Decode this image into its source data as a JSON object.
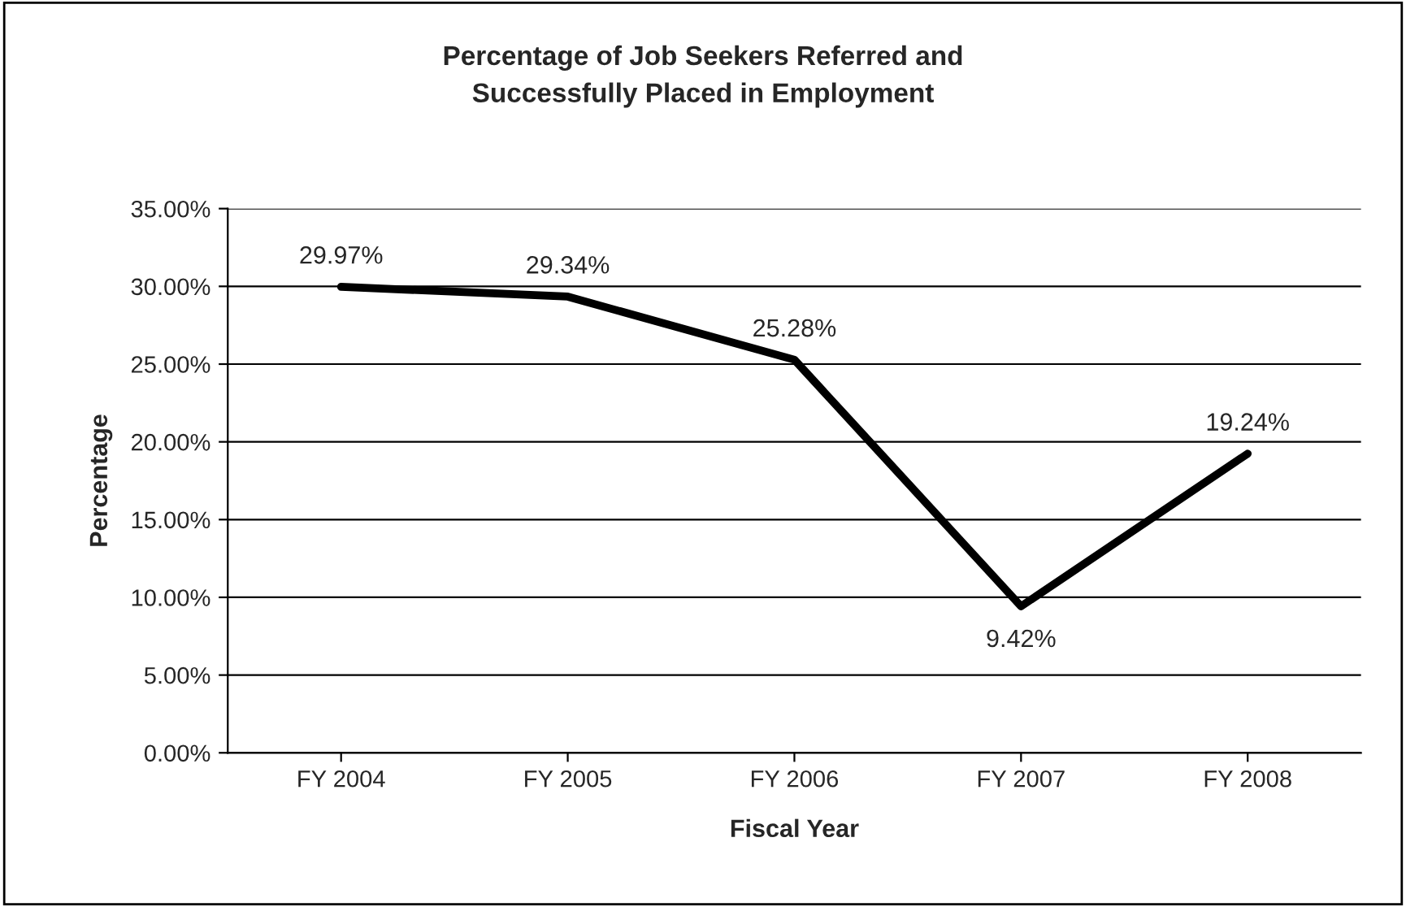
{
  "chart_data": {
    "type": "line",
    "title": "Percentage of Job Seekers Referred and\nSuccessfully Placed in Employment",
    "xlabel": "Fiscal Year",
    "ylabel": "Percentage",
    "categories": [
      "FY 2004",
      "FY 2005",
      "FY 2006",
      "FY 2007",
      "FY 2008"
    ],
    "series": [
      {
        "color": "#000000",
        "values": [
          29.97,
          29.34,
          25.28,
          9.42,
          19.24
        ],
        "value_labels": [
          "29.97%",
          "29.34%",
          "25.28%",
          "9.42%",
          "19.24%"
        ]
      }
    ],
    "ylim": [
      0,
      35
    ],
    "yticks": [
      {
        "value": 0,
        "label": "0.00%"
      },
      {
        "value": 5,
        "label": "5.00%"
      },
      {
        "value": 10,
        "label": "10.00%"
      },
      {
        "value": 15,
        "label": "15.00%"
      },
      {
        "value": 20,
        "label": "20.00%"
      },
      {
        "value": 25,
        "label": "25.00%"
      },
      {
        "value": 30,
        "label": "30.00%"
      },
      {
        "value": 35,
        "label": "35.00%"
      }
    ],
    "grid": "y",
    "legend": false,
    "marker": "none",
    "line_style": "solid"
  }
}
